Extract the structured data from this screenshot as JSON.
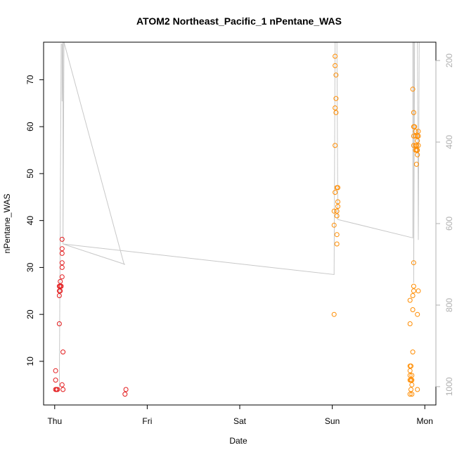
{
  "chart_data": {
    "type": "scatter",
    "title": "ATOM2 Northeast_Pacific_1 nPentane_WAS",
    "xlabel": "Date",
    "ylabel": "nPentane_WAS",
    "x_ticks": [
      "Thu",
      "Fri",
      "Sat",
      "Sun",
      "Mon"
    ],
    "x_range_days": [
      -0.12,
      4.12
    ],
    "ylim": [
      0.7,
      78
    ],
    "y_ticks": [
      10,
      20,
      30,
      40,
      50,
      60,
      70
    ],
    "right_axis": {
      "label": "",
      "ticks": [
        200,
        400,
        600,
        800,
        1000
      ],
      "range": [
        1045,
        155
      ],
      "color": "#b0b0b0"
    },
    "grid": false,
    "legend": "none",
    "colors": {
      "early": "#e31a1c",
      "late": "#ff8c00",
      "line": "#c8c8c8"
    },
    "series": [
      {
        "color_key": "early",
        "points": [
          [
            0.01,
            4
          ],
          [
            0.02,
            4
          ],
          [
            0.03,
            4
          ],
          [
            0.01,
            6
          ],
          [
            0.01,
            8
          ],
          [
            0.05,
            18
          ],
          [
            0.05,
            24
          ],
          [
            0.05,
            25
          ],
          [
            0.06,
            25
          ],
          [
            0.05,
            26
          ],
          [
            0.06,
            26
          ],
          [
            0.07,
            26
          ],
          [
            0.06,
            27
          ],
          [
            0.08,
            5
          ],
          [
            0.09,
            4
          ],
          [
            0.09,
            12
          ],
          [
            0.08,
            28
          ],
          [
            0.08,
            30
          ],
          [
            0.08,
            31
          ],
          [
            0.08,
            33
          ],
          [
            0.08,
            34
          ],
          [
            0.08,
            36
          ],
          [
            0.76,
            3
          ],
          [
            0.77,
            4
          ]
        ]
      },
      {
        "color_key": "late",
        "points": [
          [
            3.02,
            20
          ],
          [
            3.02,
            39
          ],
          [
            3.02,
            42
          ],
          [
            3.03,
            46
          ],
          [
            3.03,
            56
          ],
          [
            3.03,
            64
          ],
          [
            3.03,
            73
          ],
          [
            3.03,
            75
          ],
          [
            3.04,
            63
          ],
          [
            3.04,
            66
          ],
          [
            3.04,
            71
          ],
          [
            3.05,
            35
          ],
          [
            3.05,
            37
          ],
          [
            3.05,
            41
          ],
          [
            3.05,
            42
          ],
          [
            3.05,
            47
          ],
          [
            3.06,
            43
          ],
          [
            3.06,
            44
          ],
          [
            3.06,
            47
          ],
          [
            3.84,
            3
          ],
          [
            3.84,
            6
          ],
          [
            3.84,
            7
          ],
          [
            3.84,
            8
          ],
          [
            3.84,
            9
          ],
          [
            3.84,
            18
          ],
          [
            3.84,
            23
          ],
          [
            3.85,
            4
          ],
          [
            3.85,
            6
          ],
          [
            3.85,
            9
          ],
          [
            3.86,
            3
          ],
          [
            3.86,
            5
          ],
          [
            3.86,
            6
          ],
          [
            3.86,
            7
          ],
          [
            3.87,
            12
          ],
          [
            3.87,
            21
          ],
          [
            3.87,
            24
          ],
          [
            3.87,
            68
          ],
          [
            3.88,
            25
          ],
          [
            3.88,
            26
          ],
          [
            3.88,
            31
          ],
          [
            3.88,
            56
          ],
          [
            3.88,
            58
          ],
          [
            3.88,
            60
          ],
          [
            3.88,
            63
          ],
          [
            3.89,
            60
          ],
          [
            3.9,
            55
          ],
          [
            3.9,
            56
          ],
          [
            3.9,
            58
          ],
          [
            3.9,
            59
          ],
          [
            3.91,
            52
          ],
          [
            3.91,
            55
          ],
          [
            3.91,
            56
          ],
          [
            3.92,
            4
          ],
          [
            3.92,
            20
          ],
          [
            3.92,
            54
          ],
          [
            3.92,
            55
          ],
          [
            3.92,
            57
          ],
          [
            3.92,
            58
          ],
          [
            3.93,
            56
          ],
          [
            3.93,
            58
          ],
          [
            3.93,
            59
          ],
          [
            3.93,
            25
          ]
        ]
      }
    ],
    "altitude_track": [
      [
        0.05,
        1005
      ],
      [
        0.07,
        160
      ],
      [
        0.08,
        160
      ],
      [
        0.08,
        300
      ],
      [
        0.09,
        100
      ],
      [
        0.09,
        650
      ],
      [
        0.1,
        155
      ],
      [
        0.75,
        700
      ],
      [
        0.76,
        700
      ],
      [
        0.09,
        650
      ],
      [
        3.02,
        725
      ],
      [
        3.03,
        155
      ],
      [
        3.04,
        155
      ],
      [
        3.05,
        155
      ],
      [
        3.06,
        590
      ],
      [
        3.87,
        635
      ],
      [
        3.87,
        155
      ],
      [
        3.88,
        155
      ],
      [
        3.88,
        745
      ],
      [
        3.89,
        155
      ],
      [
        3.92,
        155
      ],
      [
        3.93,
        640
      ],
      [
        3.94,
        155
      ]
    ]
  }
}
